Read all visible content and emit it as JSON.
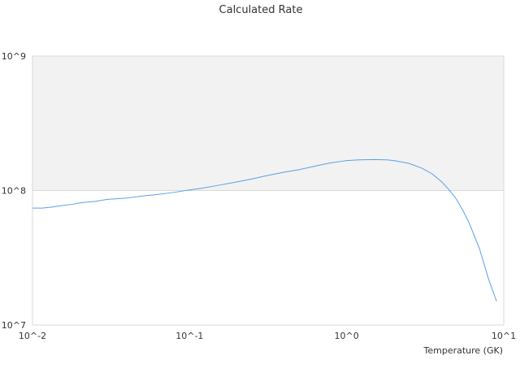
{
  "chart_data": {
    "type": "line",
    "title": "Calculated Rate",
    "xlabel": "Temperature (GK)",
    "ylabel": "",
    "x_scale": "log",
    "y_scale": "log",
    "xlim": [
      0.01,
      10
    ],
    "ylim": [
      10000000,
      1000000000
    ],
    "x_ticks": [
      {
        "value": 0.01,
        "label": "10^-2"
      },
      {
        "value": 0.1,
        "label": "10^-1"
      },
      {
        "value": 1,
        "label": "10^0"
      },
      {
        "value": 10,
        "label": "10^1"
      }
    ],
    "y_ticks": [
      {
        "value": 10000000,
        "label": "10^7"
      },
      {
        "value": 100000000,
        "label": "10^8"
      },
      {
        "value": 1000000000,
        "label": "10^9"
      }
    ],
    "grid": true,
    "colors": {
      "series_line": "#5a9fe6",
      "shaded_band": "#f2f2f2",
      "axis_line": "#d9d9d9",
      "text": "#333333"
    },
    "shaded_band": {
      "y_from": 100000000,
      "y_to": 1000000000
    },
    "series": [
      {
        "color": "#5a9fe6",
        "x": [
          0.01,
          0.0115,
          0.013,
          0.015,
          0.018,
          0.02,
          0.025,
          0.03,
          0.04,
          0.05,
          0.06,
          0.07,
          0.08,
          0.1,
          0.12,
          0.15,
          0.2,
          0.25,
          0.3,
          0.4,
          0.5,
          0.6,
          0.7,
          0.8,
          0.9,
          1.0,
          1.2,
          1.5,
          1.8,
          2.0,
          2.5,
          3.0,
          3.5,
          4.0,
          4.5,
          5.0,
          5.5,
          6.0,
          7.0,
          8.0,
          9.0
        ],
        "y": [
          74000000,
          74000000,
          75000000,
          77000000,
          79000000,
          81000000,
          83000000,
          86000000,
          88000000,
          91000000,
          93000000,
          95000000,
          97000000,
          101000000,
          104000000,
          109000000,
          116000000,
          122000000,
          128000000,
          137000000,
          143000000,
          150000000,
          156000000,
          161000000,
          164000000,
          167000000,
          169000000,
          170000000,
          169000000,
          167000000,
          159000000,
          147000000,
          133000000,
          117000000,
          101000000,
          86000000,
          71000000,
          58000000,
          37000000,
          22000000,
          15000000
        ]
      }
    ]
  }
}
